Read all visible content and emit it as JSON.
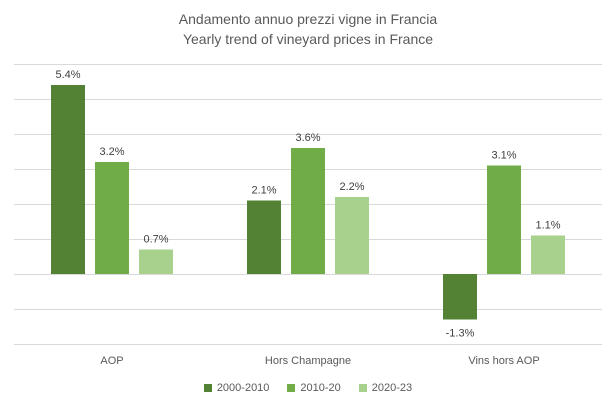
{
  "chart_data": {
    "type": "bar",
    "title": "Andamento annuo prezzi vigne in Francia",
    "subtitle": "Yearly trend of vineyard prices in France",
    "categories": [
      "AOP",
      "Hors Champagne",
      "Vins hors AOP"
    ],
    "series": [
      {
        "name": "2000-2010",
        "color": "#548235",
        "values": [
          5.4,
          2.1,
          -1.3
        ],
        "labels": [
          "5.4%",
          "2.1%",
          "-1.3%"
        ]
      },
      {
        "name": "2010-20",
        "color": "#70AD47",
        "values": [
          3.2,
          3.6,
          3.1
        ],
        "labels": [
          "3.2%",
          "3.6%",
          "3.1%"
        ]
      },
      {
        "name": "2020-23",
        "color": "#A9D18E",
        "values": [
          0.7,
          2.2,
          1.1
        ],
        "labels": [
          "0.7%",
          "2.2%",
          "1.1%"
        ]
      }
    ],
    "ylim": [
      -2,
      6
    ],
    "gridlines": [
      -2,
      -1,
      0,
      1,
      2,
      3,
      4,
      5,
      6
    ],
    "grid": true,
    "xlabel": "",
    "ylabel": "",
    "legend_position": "bottom"
  }
}
